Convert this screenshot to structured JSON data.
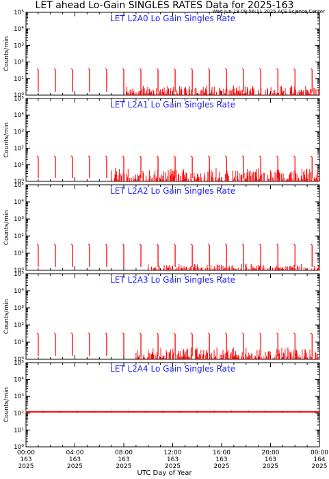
{
  "title": "LET ahead Lo-Gain SINGLES RATES Data for 2025-163",
  "timestamp": "Wed Jun 18 09:56:11 2025 ACE Science Center",
  "x_axis_label": "UTC Day of Year",
  "colors": {
    "data": "#ff0000",
    "panel_title": "#1a1aff",
    "axes": "#000000"
  },
  "chart_data": [
    {
      "type": "line",
      "title": "LET L2A0 Lo Gain Singles Rate",
      "ylabel": "Counts/min",
      "yscale": "log",
      "ylim": [
        1,
        100000
      ],
      "xlim": [
        0,
        24
      ],
      "spikes": [
        {
          "t": 1.0,
          "v": 35
        },
        {
          "t": 2.4,
          "v": 35
        },
        {
          "t": 3.8,
          "v": 35
        },
        {
          "t": 5.2,
          "v": 35
        },
        {
          "t": 6.6,
          "v": 35
        },
        {
          "t": 8.0,
          "v": 35
        },
        {
          "t": 9.4,
          "v": 35
        },
        {
          "t": 10.8,
          "v": 35
        },
        {
          "t": 12.2,
          "v": 35
        },
        {
          "t": 13.6,
          "v": 35
        },
        {
          "t": 15.0,
          "v": 35
        },
        {
          "t": 16.4,
          "v": 35
        },
        {
          "t": 17.8,
          "v": 35
        },
        {
          "t": 19.2,
          "v": 35
        },
        {
          "t": 20.6,
          "v": 35
        },
        {
          "t": 22.0,
          "v": 35
        },
        {
          "t": 23.4,
          "v": 35
        }
      ],
      "baseline_noise": [
        {
          "t_start": 8.2,
          "t_end": 24,
          "v_max": 3
        }
      ]
    },
    {
      "type": "line",
      "title": "LET L2A1 Lo Gain Singles Rate",
      "ylabel": "Counts/min",
      "yscale": "log",
      "ylim": [
        1,
        100000
      ],
      "xlim": [
        0,
        24
      ],
      "spikes": [
        {
          "t": 1.0,
          "v": 30
        },
        {
          "t": 2.4,
          "v": 30
        },
        {
          "t": 3.8,
          "v": 30
        },
        {
          "t": 5.2,
          "v": 30
        },
        {
          "t": 6.6,
          "v": 30
        },
        {
          "t": 8.0,
          "v": 30
        },
        {
          "t": 9.4,
          "v": 30
        },
        {
          "t": 10.8,
          "v": 30
        },
        {
          "t": 12.2,
          "v": 30
        },
        {
          "t": 13.6,
          "v": 30
        },
        {
          "t": 15.0,
          "v": 30
        },
        {
          "t": 16.4,
          "v": 30
        },
        {
          "t": 17.8,
          "v": 30
        },
        {
          "t": 19.2,
          "v": 30
        },
        {
          "t": 20.6,
          "v": 30
        },
        {
          "t": 22.0,
          "v": 30
        },
        {
          "t": 23.4,
          "v": 30
        }
      ],
      "baseline_noise": [
        {
          "t_start": 7.0,
          "t_end": 24,
          "v_max": 5
        }
      ]
    },
    {
      "type": "line",
      "title": "LET L2A2 Lo Gain Singles Rate",
      "ylabel": "Counts/min",
      "yscale": "log",
      "ylim": [
        1,
        100000
      ],
      "xlim": [
        0,
        24
      ],
      "spikes": [
        {
          "t": 1.0,
          "v": 30
        },
        {
          "t": 2.4,
          "v": 30
        },
        {
          "t": 3.8,
          "v": 30
        },
        {
          "t": 5.2,
          "v": 30
        },
        {
          "t": 6.6,
          "v": 30
        },
        {
          "t": 8.0,
          "v": 30
        },
        {
          "t": 9.4,
          "v": 30
        },
        {
          "t": 10.8,
          "v": 30
        },
        {
          "t": 12.2,
          "v": 30
        },
        {
          "t": 13.6,
          "v": 30
        },
        {
          "t": 15.0,
          "v": 30
        },
        {
          "t": 16.4,
          "v": 30
        },
        {
          "t": 17.8,
          "v": 30
        },
        {
          "t": 19.2,
          "v": 30
        },
        {
          "t": 20.6,
          "v": 30
        },
        {
          "t": 22.0,
          "v": 30
        },
        {
          "t": 23.4,
          "v": 30
        }
      ],
      "baseline_noise": [
        {
          "t_start": 10.0,
          "t_end": 24,
          "v_max": 2
        }
      ]
    },
    {
      "type": "line",
      "title": "LET L2A3 Lo Gain Singles Rate",
      "ylabel": "Counts/min",
      "yscale": "log",
      "ylim": [
        1,
        100000
      ],
      "xlim": [
        0,
        24
      ],
      "spikes": [
        {
          "t": 1.0,
          "v": 30
        },
        {
          "t": 2.4,
          "v": 30
        },
        {
          "t": 3.8,
          "v": 30
        },
        {
          "t": 5.2,
          "v": 30
        },
        {
          "t": 6.6,
          "v": 30
        },
        {
          "t": 8.0,
          "v": 30
        },
        {
          "t": 9.4,
          "v": 30
        },
        {
          "t": 10.8,
          "v": 30
        },
        {
          "t": 12.2,
          "v": 30
        },
        {
          "t": 13.6,
          "v": 30
        },
        {
          "t": 15.0,
          "v": 30
        },
        {
          "t": 16.4,
          "v": 30
        },
        {
          "t": 17.8,
          "v": 30
        },
        {
          "t": 19.2,
          "v": 30
        },
        {
          "t": 20.6,
          "v": 30
        },
        {
          "t": 22.0,
          "v": 30
        },
        {
          "t": 23.4,
          "v": 30
        }
      ],
      "baseline_noise": [
        {
          "t_start": 9.0,
          "t_end": 24,
          "v_max": 4
        }
      ]
    },
    {
      "type": "line",
      "title": "LET L2A4 Lo Gain Singles Rate",
      "ylabel": "Counts/min",
      "yscale": "log",
      "ylim": [
        1,
        100000
      ],
      "xlim": [
        0,
        24
      ],
      "spikes": [],
      "flat_level": 120
    }
  ],
  "x_ticks": [
    {
      "time": "00:00",
      "day": "163",
      "year": "2025"
    },
    {
      "time": "04:00",
      "day": "163",
      "year": "2025"
    },
    {
      "time": "08:00",
      "day": "163",
      "year": "2025"
    },
    {
      "time": "12:00",
      "day": "163",
      "year": "2025"
    },
    {
      "time": "16:00",
      "day": "163",
      "year": "2025"
    },
    {
      "time": "20:00",
      "day": "163",
      "year": "2025"
    },
    {
      "time": "00:00",
      "day": "164",
      "year": "2025"
    }
  ],
  "y_tick_labels": [
    "10⁰",
    "10¹",
    "10²",
    "10³",
    "10⁴",
    "10⁵"
  ]
}
